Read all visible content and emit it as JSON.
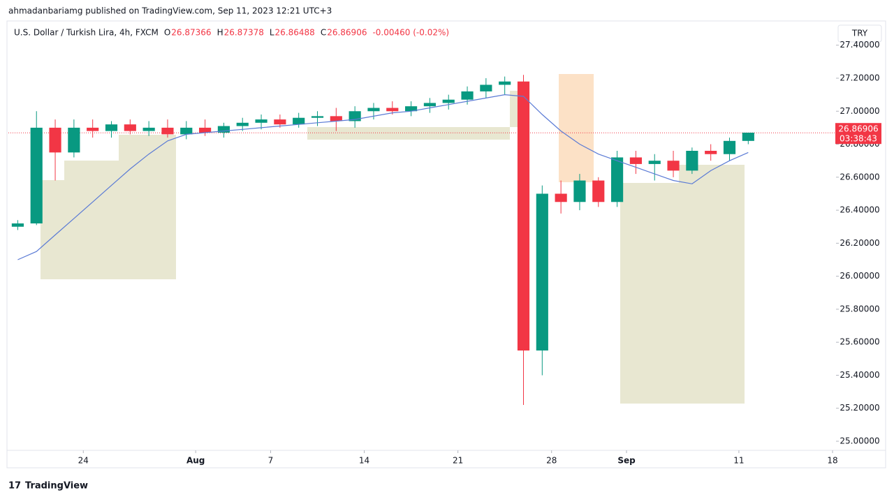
{
  "chart_data": {
    "type": "candlestick",
    "header": "ahmadanbariamg published on TradingView.com, Sep 11, 2023 12:21 UTC+3",
    "title": "U.S. Dollar / Turkish Lira, 4h, FXCM",
    "ohlc_legend": {
      "o_label": "O",
      "o": 26.87366,
      "h_label": "H",
      "h": 26.87378,
      "l_label": "L",
      "l": 26.86488,
      "c_label": "C",
      "c": 26.86906,
      "change": "-0.00460 (-0.02%)"
    },
    "currency": "TRY",
    "footer": "TradingView",
    "up_color": "#089981",
    "down_color": "#f23645",
    "x": [
      "2023-07-18",
      "2023-07-19",
      "2023-07-20",
      "2023-07-21",
      "2023-07-24",
      "2023-07-25",
      "2023-07-26",
      "2023-07-27",
      "2023-07-28",
      "2023-07-31",
      "2023-08-01",
      "2023-08-02",
      "2023-08-03",
      "2023-08-04",
      "2023-08-07",
      "2023-08-08",
      "2023-08-09",
      "2023-08-10",
      "2023-08-11",
      "2023-08-14",
      "2023-08-15",
      "2023-08-16",
      "2023-08-17",
      "2023-08-18",
      "2023-08-21",
      "2023-08-22",
      "2023-08-23",
      "2023-08-24",
      "2023-08-25",
      "2023-08-28",
      "2023-08-29",
      "2023-08-30",
      "2023-08-31",
      "2023-09-01",
      "2023-09-04",
      "2023-09-05",
      "2023-09-06",
      "2023-09-07",
      "2023-09-08",
      "2023-09-11"
    ],
    "open": [
      26.3,
      26.32,
      26.9,
      26.75,
      26.9,
      26.88,
      26.92,
      26.88,
      26.9,
      26.86,
      26.9,
      26.87,
      26.91,
      26.93,
      26.95,
      26.92,
      26.96,
      26.97,
      26.94,
      27.0,
      27.02,
      27.0,
      27.03,
      27.05,
      27.07,
      27.12,
      27.16,
      27.18,
      25.55,
      26.5,
      26.45,
      26.58,
      26.45,
      26.72,
      26.68,
      26.7,
      26.64,
      26.76,
      26.74,
      26.82
    ],
    "high": [
      26.34,
      27.0,
      26.95,
      26.95,
      26.95,
      26.94,
      26.95,
      26.94,
      26.95,
      26.94,
      26.95,
      26.93,
      26.96,
      26.98,
      26.98,
      26.99,
      27.0,
      27.02,
      27.03,
      27.05,
      27.06,
      27.06,
      27.08,
      27.1,
      27.15,
      27.2,
      27.21,
      27.22,
      26.55,
      26.58,
      26.62,
      26.6,
      26.76,
      26.76,
      26.74,
      26.76,
      26.78,
      26.8,
      26.84,
      26.87
    ],
    "low": [
      26.28,
      26.31,
      26.58,
      26.72,
      26.84,
      26.84,
      26.86,
      26.85,
      26.84,
      26.83,
      26.85,
      26.84,
      26.88,
      26.89,
      26.9,
      26.9,
      26.91,
      26.88,
      26.9,
      26.95,
      26.98,
      26.97,
      26.99,
      27.01,
      27.04,
      27.08,
      27.1,
      25.22,
      25.4,
      26.38,
      26.4,
      26.42,
      26.42,
      26.62,
      26.58,
      26.6,
      26.62,
      26.7,
      26.7,
      26.8
    ],
    "close": [
      26.32,
      26.9,
      26.75,
      26.9,
      26.88,
      26.92,
      26.88,
      26.9,
      26.86,
      26.9,
      26.87,
      26.91,
      26.93,
      26.95,
      26.92,
      26.96,
      26.97,
      26.94,
      27.0,
      27.02,
      27.0,
      27.03,
      27.05,
      27.07,
      27.12,
      27.16,
      27.18,
      25.55,
      26.5,
      26.45,
      26.58,
      26.45,
      26.72,
      26.68,
      26.7,
      26.64,
      26.76,
      26.74,
      26.82,
      26.87
    ],
    "ma": {
      "color": "#5b7bd5",
      "values": [
        26.1,
        26.15,
        26.25,
        26.35,
        26.45,
        26.55,
        26.65,
        26.74,
        26.82,
        26.86,
        26.87,
        26.88,
        26.89,
        26.9,
        26.91,
        26.92,
        26.93,
        26.94,
        26.95,
        26.97,
        26.99,
        27.0,
        27.02,
        27.04,
        27.06,
        27.08,
        27.1,
        27.09,
        26.98,
        26.88,
        26.8,
        26.74,
        26.7,
        26.66,
        26.62,
        26.58,
        26.56,
        26.64,
        26.7,
        26.75
      ]
    },
    "last_price": 26.86906,
    "countdown": "03:38:43",
    "xlim": [
      "2023-07-18",
      "2023-09-18"
    ],
    "xticks": [
      {
        "value": "2023-07-24",
        "label": "24"
      },
      {
        "value": "2023-08-01",
        "label": "Aug"
      },
      {
        "value": "2023-08-07",
        "label": "7"
      },
      {
        "value": "2023-08-14",
        "label": "14"
      },
      {
        "value": "2023-08-21",
        "label": "21"
      },
      {
        "value": "2023-08-28",
        "label": "28"
      },
      {
        "value": "2023-09-01",
        "label": "Sep"
      },
      {
        "value": "2023-09-11",
        "label": "11"
      },
      {
        "value": "2023-09-18",
        "label": "18"
      }
    ],
    "ylim": [
      24.945,
      27.42
    ],
    "yticks": [
      {
        "value": 25.0,
        "label": "25.00000"
      },
      {
        "value": 25.2,
        "label": "25.20000"
      },
      {
        "value": 25.4,
        "label": "25.40000"
      },
      {
        "value": 25.6,
        "label": "25.60000"
      },
      {
        "value": 25.8,
        "label": "25.80000"
      },
      {
        "value": 26.0,
        "label": "26.00000"
      },
      {
        "value": 26.2,
        "label": "26.20000"
      },
      {
        "value": 26.4,
        "label": "26.40000"
      },
      {
        "value": 26.6,
        "label": "26.60000"
      },
      {
        "value": 26.8,
        "label": "26.80000"
      },
      {
        "value": 27.0,
        "label": "27.00000"
      },
      {
        "value": 27.2,
        "label": "27.20000"
      },
      {
        "value": 27.4,
        "label": "27.40000"
      }
    ]
  }
}
